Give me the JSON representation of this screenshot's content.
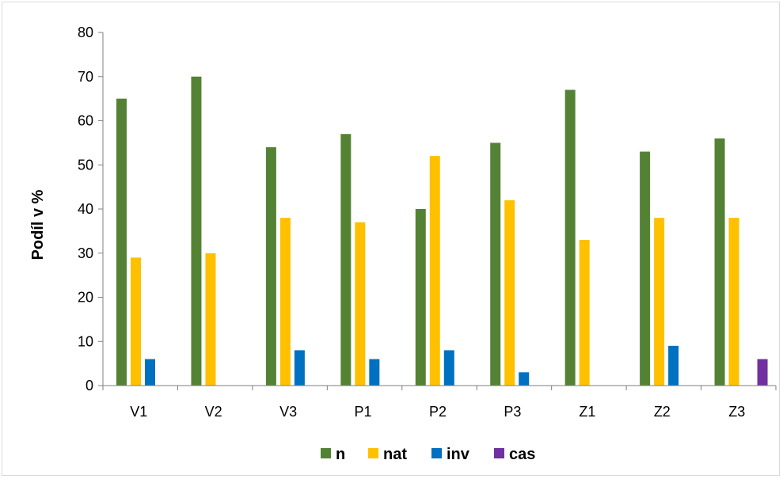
{
  "chart_data": {
    "type": "bar",
    "title": "",
    "xlabel": "",
    "ylabel": "Podíl v %",
    "ylim": [
      0,
      80
    ],
    "yticks": [
      0,
      10,
      20,
      30,
      40,
      50,
      60,
      70,
      80
    ],
    "grid": false,
    "legend_position": "bottom",
    "categories": [
      "V1",
      "V2",
      "V3",
      "P1",
      "P2",
      "P3",
      "Z1",
      "Z2",
      "Z3"
    ],
    "series": [
      {
        "name": "n",
        "color": "#548235",
        "values": [
          65,
          70,
          54,
          57,
          40,
          55,
          67,
          53,
          56
        ]
      },
      {
        "name": "nat",
        "color": "#ffc000",
        "values": [
          29,
          30,
          38,
          37,
          52,
          42,
          33,
          38,
          38
        ]
      },
      {
        "name": "inv",
        "color": "#0070c0",
        "values": [
          6,
          0,
          8,
          6,
          8,
          3,
          0,
          9,
          0
        ]
      },
      {
        "name": "cas",
        "color": "#7030a0",
        "values": [
          0,
          0,
          0,
          0,
          0,
          0,
          0,
          0,
          6
        ]
      }
    ]
  }
}
